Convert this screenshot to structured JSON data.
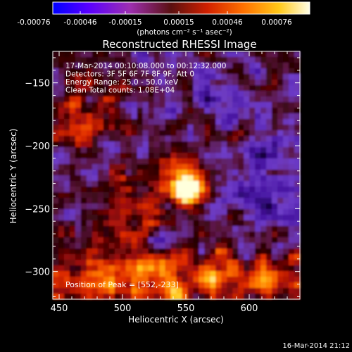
{
  "colorbar": {
    "tick_labels": [
      "-0.00076",
      "-0.00046",
      "-0.00015",
      "0.00015",
      "0.00046",
      "0.00076"
    ],
    "range": [
      -0.00076,
      0.00076
    ],
    "units": "(photons cm⁻² s⁻¹ asec⁻²)",
    "colormap": [
      "#0000ff",
      "#5a00ff",
      "#9d2fb0",
      "#8a2020",
      "#e03000",
      "#ff8000",
      "#ffd020",
      "#ffffc0"
    ]
  },
  "chart_data": {
    "type": "heatmap",
    "title": "Reconstructed RHESSI Image",
    "xlabel": "Heliocentric X (arcsec)",
    "ylabel": "Heliocentric Y (arcsec)",
    "xlim": [
      445,
      640
    ],
    "ylim": [
      -322,
      -125
    ],
    "x_ticks": [
      450,
      500,
      550,
      600
    ],
    "y_ticks": [
      -150,
      -200,
      -250,
      -300
    ],
    "annotations": [
      "17-Mar-2014 00:10:08.000 to 00:12:32.000",
      "Detectors: 3F 5F 6F 7F 8F 9F, Att 0",
      "Energy Range: 25.0 - 50.0 keV",
      "Clean     Total counts: 1.08E+04"
    ],
    "peak_label": "Position of Peak = [552,-233]",
    "peak": [
      552,
      -233
    ]
  },
  "footer_timestamp": "16-Mar-2014 21:12"
}
